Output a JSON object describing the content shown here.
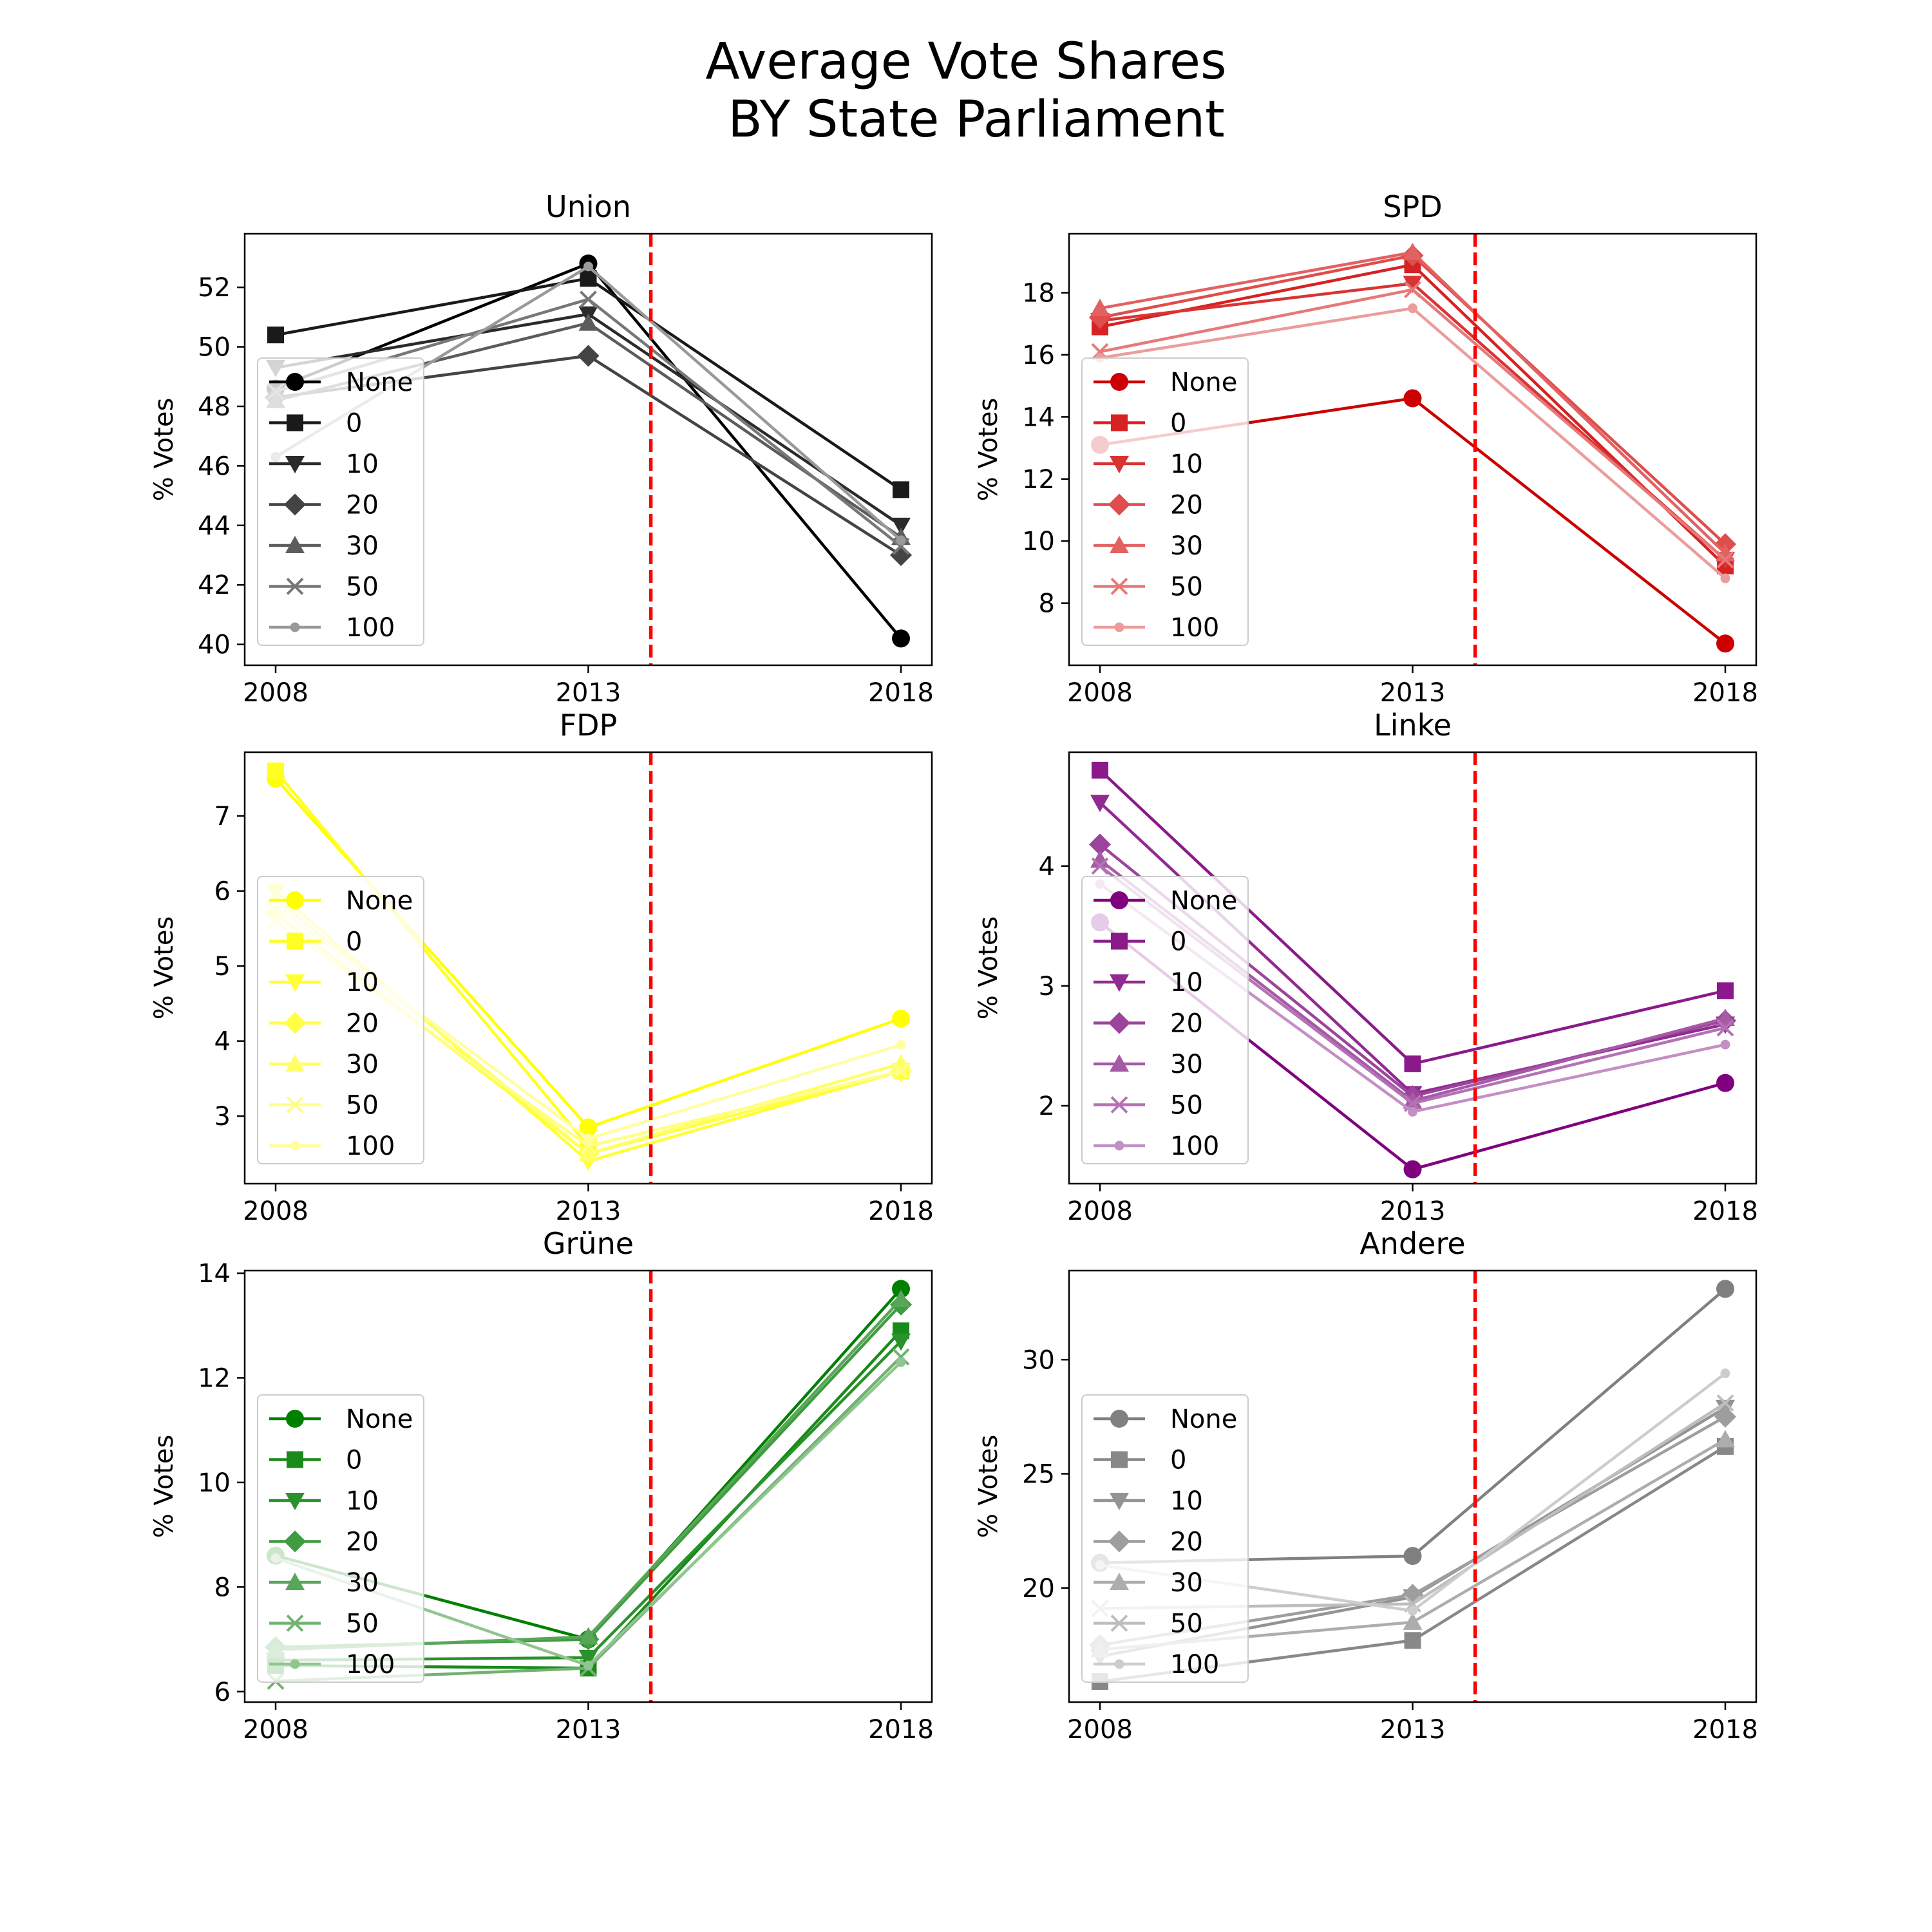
{
  "figure": {
    "title_line1": "Average Vote Shares",
    "title_line2": "BY State Parliament"
  },
  "chart_data": [
    {
      "type": "line",
      "title": "Union",
      "ylabel": "% Votes",
      "xlabel": "",
      "x": [
        2008,
        2013,
        2018
      ],
      "ylim": [
        39.3,
        53.8
      ],
      "yticks": [
        40,
        42,
        44,
        46,
        48,
        50,
        52
      ],
      "vline_x": 2014,
      "legend": "upper left",
      "colors": [
        "#000000",
        "#1a1a1a",
        "#2b2b2b",
        "#444444",
        "#5c5c5c",
        "#777777",
        "#999999"
      ],
      "series": [
        {
          "name": "None",
          "marker": "circle",
          "values": [
            48.6,
            52.8,
            40.2
          ]
        },
        {
          "name": "0",
          "marker": "square",
          "values": [
            50.4,
            52.3,
            45.2
          ]
        },
        {
          "name": "10",
          "marker": "triangle-down",
          "values": [
            49.3,
            51.1,
            44.0
          ]
        },
        {
          "name": "20",
          "marker": "diamond",
          "values": [
            48.3,
            49.7,
            43.0
          ]
        },
        {
          "name": "30",
          "marker": "triangle-up",
          "values": [
            48.2,
            50.8,
            43.6
          ]
        },
        {
          "name": "50",
          "marker": "x",
          "values": [
            48.5,
            51.6,
            43.3
          ]
        },
        {
          "name": "100",
          "marker": "point",
          "values": [
            46.3,
            52.7,
            43.5
          ]
        }
      ]
    },
    {
      "type": "line",
      "title": "SPD",
      "ylabel": "% Votes",
      "xlabel": "",
      "x": [
        2008,
        2013,
        2018
      ],
      "ylim": [
        6.0,
        19.9
      ],
      "yticks": [
        8,
        10,
        12,
        14,
        16,
        18
      ],
      "vline_x": 2014,
      "legend": "upper left",
      "colors": [
        "#cc0000",
        "#d62222",
        "#da3333",
        "#df4d4d",
        "#e26262",
        "#e67979",
        "#ec9c9c"
      ],
      "series": [
        {
          "name": "None",
          "marker": "circle",
          "values": [
            13.1,
            14.6,
            6.7
          ]
        },
        {
          "name": "0",
          "marker": "square",
          "values": [
            16.9,
            18.9,
            9.2
          ]
        },
        {
          "name": "10",
          "marker": "triangle-down",
          "values": [
            17.1,
            18.3,
            9.4
          ]
        },
        {
          "name": "20",
          "marker": "diamond",
          "values": [
            17.2,
            19.2,
            9.9
          ]
        },
        {
          "name": "30",
          "marker": "triangle-up",
          "values": [
            17.5,
            19.3,
            9.6
          ]
        },
        {
          "name": "50",
          "marker": "x",
          "values": [
            16.1,
            18.1,
            9.4
          ]
        },
        {
          "name": "100",
          "marker": "point",
          "values": [
            15.9,
            17.5,
            8.8
          ]
        }
      ]
    },
    {
      "type": "line",
      "title": "FDP",
      "ylabel": "% Votes",
      "xlabel": "",
      "x": [
        2008,
        2013,
        2018
      ],
      "ylim": [
        2.1,
        7.85
      ],
      "yticks": [
        3,
        4,
        5,
        6,
        7
      ],
      "vline_x": 2014,
      "legend": "upper left",
      "colors": [
        "#ffff00",
        "#ffff22",
        "#ffff33",
        "#ffff44",
        "#ffff66",
        "#ffff88",
        "#ffffa0"
      ],
      "series": [
        {
          "name": "None",
          "marker": "circle",
          "values": [
            7.5,
            2.85,
            4.3
          ]
        },
        {
          "name": "0",
          "marker": "square",
          "values": [
            7.6,
            2.6,
            3.6
          ]
        },
        {
          "name": "10",
          "marker": "triangle-down",
          "values": [
            6.0,
            2.4,
            3.6
          ]
        },
        {
          "name": "20",
          "marker": "diamond",
          "values": [
            5.7,
            2.5,
            3.6
          ]
        },
        {
          "name": "30",
          "marker": "triangle-up",
          "values": [
            5.9,
            2.5,
            3.7
          ]
        },
        {
          "name": "50",
          "marker": "x",
          "values": [
            5.6,
            2.6,
            3.6
          ]
        },
        {
          "name": "100",
          "marker": "point",
          "values": [
            5.8,
            2.7,
            3.95
          ]
        }
      ]
    },
    {
      "type": "line",
      "title": "Linke",
      "ylabel": "% Votes",
      "xlabel": "",
      "x": [
        2008,
        2013,
        2018
      ],
      "ylim": [
        1.35,
        4.95
      ],
      "yticks": [
        2,
        3,
        4
      ],
      "vline_x": 2014,
      "legend": "upper left",
      "colors": [
        "#800080",
        "#8a1a8a",
        "#922a92",
        "#9c449c",
        "#a65aa6",
        "#b472b4",
        "#c490c4"
      ],
      "series": [
        {
          "name": "None",
          "marker": "circle",
          "values": [
            3.53,
            1.47,
            2.19
          ]
        },
        {
          "name": "0",
          "marker": "square",
          "values": [
            4.8,
            2.35,
            2.96
          ]
        },
        {
          "name": "10",
          "marker": "triangle-down",
          "values": [
            4.53,
            2.1,
            2.68
          ]
        },
        {
          "name": "20",
          "marker": "diamond",
          "values": [
            4.18,
            2.08,
            2.71
          ]
        },
        {
          "name": "30",
          "marker": "triangle-up",
          "values": [
            4.05,
            2.04,
            2.73
          ]
        },
        {
          "name": "50",
          "marker": "x",
          "values": [
            4.0,
            2.02,
            2.65
          ]
        },
        {
          "name": "100",
          "marker": "point",
          "values": [
            3.85,
            1.95,
            2.51
          ]
        }
      ]
    },
    {
      "type": "line",
      "title": "Grüne",
      "ylabel": "% Votes",
      "xlabel": "",
      "x": [
        2008,
        2013,
        2018
      ],
      "ylim": [
        5.8,
        14.05
      ],
      "yticks": [
        6,
        8,
        10,
        12,
        14
      ],
      "vline_x": 2014,
      "legend": "upper left",
      "colors": [
        "#008000",
        "#1a8a1a",
        "#2a922a",
        "#409c40",
        "#58a658",
        "#70b270",
        "#90c490"
      ],
      "series": [
        {
          "name": "None",
          "marker": "circle",
          "values": [
            8.6,
            7.0,
            13.7
          ]
        },
        {
          "name": "0",
          "marker": "square",
          "values": [
            6.5,
            6.45,
            12.9
          ]
        },
        {
          "name": "10",
          "marker": "triangle-down",
          "values": [
            6.6,
            6.65,
            12.7
          ]
        },
        {
          "name": "20",
          "marker": "diamond",
          "values": [
            6.85,
            7.0,
            13.4
          ]
        },
        {
          "name": "30",
          "marker": "triangle-up",
          "values": [
            6.8,
            7.05,
            13.5
          ]
        },
        {
          "name": "50",
          "marker": "x",
          "values": [
            6.2,
            6.45,
            12.4
          ]
        },
        {
          "name": "100",
          "marker": "point",
          "values": [
            8.55,
            6.5,
            12.3
          ]
        }
      ]
    },
    {
      "type": "line",
      "title": "Andere",
      "ylabel": "% Votes",
      "xlabel": "",
      "x": [
        2008,
        2013,
        2018
      ],
      "ylim": [
        15.0,
        33.9
      ],
      "yticks": [
        20,
        25,
        30
      ],
      "vline_x": 2014,
      "legend": "upper left",
      "colors": [
        "#808080",
        "#888888",
        "#939393",
        "#9e9e9e",
        "#adadad",
        "#bdbdbd",
        "#cdcdcd"
      ],
      "series": [
        {
          "name": "None",
          "marker": "circle",
          "values": [
            21.1,
            21.4,
            33.1
          ]
        },
        {
          "name": "0",
          "marker": "square",
          "values": [
            15.9,
            17.7,
            26.2
          ]
        },
        {
          "name": "10",
          "marker": "triangle-down",
          "values": [
            17.0,
            19.6,
            27.9
          ]
        },
        {
          "name": "20",
          "marker": "diamond",
          "values": [
            17.5,
            19.7,
            27.5
          ]
        },
        {
          "name": "30",
          "marker": "triangle-up",
          "values": [
            17.3,
            18.5,
            26.5
          ]
        },
        {
          "name": "50",
          "marker": "x",
          "values": [
            19.1,
            19.3,
            28.1
          ]
        },
        {
          "name": "100",
          "marker": "point",
          "values": [
            21.0,
            19.0,
            29.4
          ]
        }
      ]
    }
  ]
}
